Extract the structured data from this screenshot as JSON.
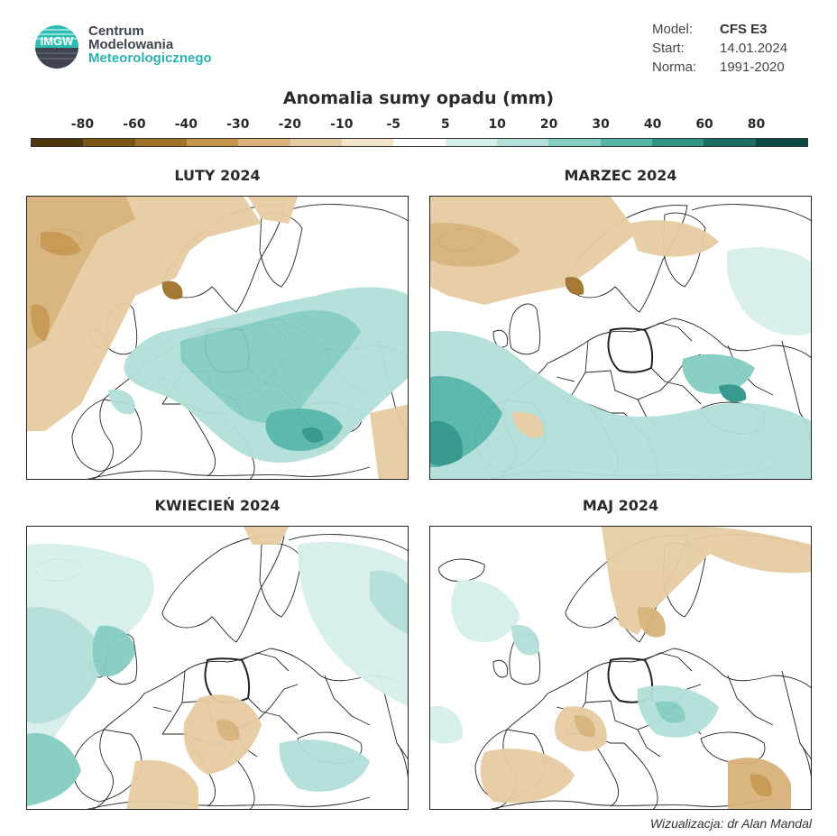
{
  "logo": {
    "abbr": "IMGW",
    "line1": "Centrum",
    "line2": "Modelowania",
    "line3": "Meteorologicznego"
  },
  "meta": [
    {
      "key": "Model:",
      "value": "CFS E3"
    },
    {
      "key": "Start:",
      "value": "14.01.2024"
    },
    {
      "key": "Norma:",
      "value": "1991-2020"
    }
  ],
  "colorbar": {
    "title": "Anomalia sumy opadu (mm)",
    "labels": [
      "-80",
      "-60",
      "-40",
      "-30",
      "-20",
      "-10",
      "-5",
      "5",
      "10",
      "20",
      "30",
      "40",
      "60",
      "80"
    ],
    "colors": [
      "#4f3710",
      "#7a5518",
      "#a0732c",
      "#c6964d",
      "#d8b27a",
      "#e6cca2",
      "#f3e4c9",
      "#ffffff",
      "#d6efea",
      "#b2e0d9",
      "#83cdc2",
      "#55b5a9",
      "#2e9488",
      "#1b6f66",
      "#0d4a45"
    ]
  },
  "panels": [
    {
      "title": "LUTY 2024"
    },
    {
      "title": "MARZEC 2024"
    },
    {
      "title": "KWIECIEŃ 2024"
    },
    {
      "title": "MAJ 2024"
    }
  ],
  "credit": "Wizualizacja: dr Alan Mandal"
}
